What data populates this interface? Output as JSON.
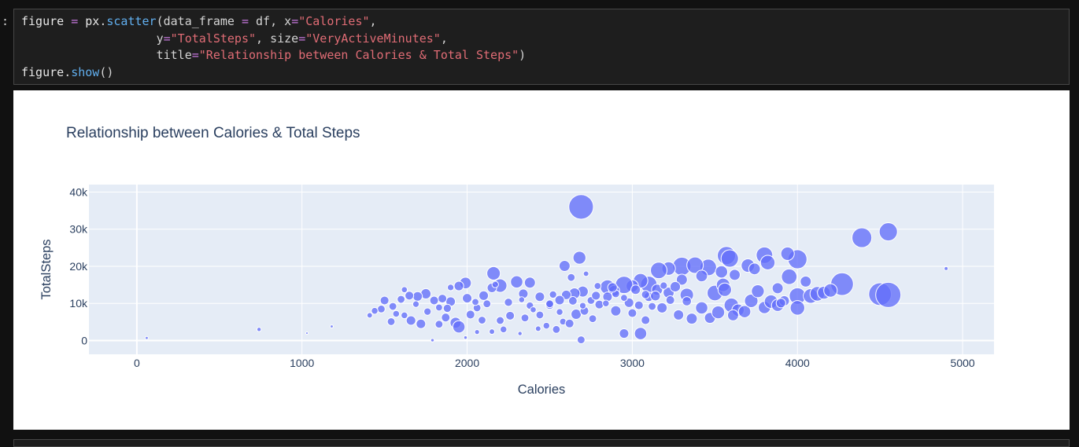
{
  "cell": {
    "prompt": ":",
    "code_lines": [
      [
        {
          "t": "id",
          "v": "figure "
        },
        {
          "t": "op",
          "v": "="
        },
        {
          "t": "id",
          "v": " px"
        },
        {
          "t": "p",
          "v": "."
        },
        {
          "t": "fn",
          "v": "scatter"
        },
        {
          "t": "p",
          "v": "(data_frame "
        },
        {
          "t": "op",
          "v": "="
        },
        {
          "t": "p",
          "v": " df, x"
        },
        {
          "t": "op",
          "v": "="
        },
        {
          "t": "str",
          "v": "\"Calories\""
        },
        {
          "t": "p",
          "v": ","
        }
      ],
      [
        {
          "t": "p",
          "v": "                   y"
        },
        {
          "t": "op",
          "v": "="
        },
        {
          "t": "str",
          "v": "\"TotalSteps\""
        },
        {
          "t": "p",
          "v": ", size"
        },
        {
          "t": "op",
          "v": "="
        },
        {
          "t": "str",
          "v": "\"VeryActiveMinutes\""
        },
        {
          "t": "p",
          "v": ","
        }
      ],
      [
        {
          "t": "p",
          "v": "                   title"
        },
        {
          "t": "op",
          "v": "="
        },
        {
          "t": "str",
          "v": "\"Relationship between Calories & Total Steps\""
        },
        {
          "t": "p",
          "v": ")"
        }
      ],
      [
        {
          "t": "id",
          "v": "figure"
        },
        {
          "t": "p",
          "v": "."
        },
        {
          "t": "fn",
          "v": "show"
        },
        {
          "t": "p",
          "v": "()"
        }
      ]
    ]
  },
  "chart_data": {
    "type": "scatter",
    "title": "Relationship between Calories & Total Steps",
    "xlabel": "Calories",
    "ylabel": "TotalSteps",
    "xlim": [
      -290,
      5190
    ],
    "ylim": [
      -3700,
      42000
    ],
    "x_ticks": [
      0,
      1000,
      2000,
      3000,
      4000,
      5000
    ],
    "x_tick_labels": [
      "0",
      "1000",
      "2000",
      "3000",
      "4000",
      "5000"
    ],
    "y_ticks": [
      0,
      10000,
      20000,
      30000,
      40000
    ],
    "y_tick_labels": [
      "0",
      "10k",
      "20k",
      "30k",
      "40k"
    ],
    "grid": true,
    "marker_color": "#636efa",
    "plot_background": "#e5ecf6",
    "size_field": "VeryActiveMinutes",
    "points": [
      [
        2690,
        36000,
        200
      ],
      [
        4390,
        27700,
        130
      ],
      [
        4550,
        29300,
        110
      ],
      [
        4900,
        19400,
        5
      ],
      [
        4270,
        15200,
        170
      ],
      [
        4500,
        12500,
        170
      ],
      [
        4550,
        12300,
        210
      ],
      [
        4000,
        21900,
        120
      ],
      [
        4000,
        12000,
        90
      ],
      [
        4000,
        8800,
        70
      ],
      [
        3950,
        17200,
        80
      ],
      [
        3800,
        23000,
        90
      ],
      [
        3820,
        21000,
        70
      ],
      [
        3940,
        23400,
        60
      ],
      [
        3700,
        20200,
        60
      ],
      [
        3570,
        22900,
        110
      ],
      [
        3590,
        22100,
        100
      ],
      [
        3460,
        19700,
        90
      ],
      [
        3500,
        12800,
        80
      ],
      [
        3550,
        15000,
        60
      ],
      [
        3600,
        9500,
        70
      ],
      [
        3640,
        8200,
        50
      ],
      [
        3300,
        20000,
        110
      ],
      [
        3380,
        20300,
        90
      ],
      [
        3220,
        19400,
        60
      ],
      [
        3160,
        18900,
        90
      ],
      [
        3100,
        15100,
        90
      ],
      [
        3050,
        16100,
        70
      ],
      [
        3000,
        14700,
        50
      ],
      [
        2950,
        15000,
        100
      ],
      [
        2850,
        14400,
        70
      ],
      [
        2890,
        13400,
        40
      ],
      [
        2700,
        13200,
        40
      ],
      [
        2650,
        12700,
        40
      ],
      [
        2600,
        12300,
        30
      ],
      [
        2560,
        10900,
        30
      ],
      [
        2500,
        9600,
        25
      ],
      [
        2440,
        11800,
        30
      ],
      [
        2340,
        12600,
        30
      ],
      [
        2300,
        15800,
        50
      ],
      [
        2380,
        15600,
        40
      ],
      [
        2200,
        14800,
        60
      ],
      [
        2160,
        18100,
        60
      ],
      [
        2150,
        14200,
        30
      ],
      [
        2100,
        12100,
        30
      ],
      [
        2060,
        8800,
        20
      ],
      [
        2000,
        11400,
        30
      ],
      [
        1990,
        15500,
        45
      ],
      [
        1950,
        14700,
        30
      ],
      [
        1900,
        10500,
        30
      ],
      [
        1850,
        11300,
        25
      ],
      [
        1800,
        10800,
        25
      ],
      [
        1750,
        12600,
        35
      ],
      [
        1700,
        11900,
        30
      ],
      [
        1650,
        12100,
        25
      ],
      [
        1600,
        11100,
        20
      ],
      [
        1550,
        9200,
        20
      ],
      [
        1500,
        10800,
        25
      ],
      [
        1480,
        8500,
        20
      ],
      [
        1440,
        8000,
        15
      ],
      [
        1410,
        6800,
        10
      ],
      [
        1540,
        5100,
        20
      ],
      [
        1620,
        6800,
        15
      ],
      [
        1660,
        5400,
        30
      ],
      [
        1720,
        4500,
        30
      ],
      [
        1830,
        4400,
        20
      ],
      [
        1870,
        6200,
        25
      ],
      [
        1930,
        4800,
        40
      ],
      [
        1950,
        3700,
        50
      ],
      [
        2020,
        7000,
        25
      ],
      [
        2090,
        5500,
        20
      ],
      [
        2150,
        2400,
        10
      ],
      [
        2200,
        5400,
        20
      ],
      [
        2260,
        6700,
        25
      ],
      [
        2350,
        6100,
        20
      ],
      [
        2440,
        6900,
        20
      ],
      [
        2480,
        4000,
        15
      ],
      [
        2540,
        3000,
        20
      ],
      [
        2580,
        5100,
        15
      ],
      [
        2620,
        4600,
        25
      ],
      [
        2660,
        7100,
        35
      ],
      [
        2760,
        5900,
        20
      ],
      [
        2800,
        9700,
        25
      ],
      [
        2850,
        11800,
        30
      ],
      [
        2900,
        8000,
        35
      ],
      [
        2980,
        10200,
        30
      ],
      [
        3040,
        9500,
        25
      ],
      [
        3100,
        11800,
        30
      ],
      [
        3150,
        13700,
        40
      ],
      [
        3180,
        8800,
        35
      ],
      [
        3220,
        12900,
        40
      ],
      [
        3280,
        6900,
        35
      ],
      [
        3330,
        12300,
        60
      ],
      [
        3360,
        5900,
        40
      ],
      [
        3420,
        8800,
        50
      ],
      [
        3470,
        6100,
        40
      ],
      [
        3520,
        7600,
        55
      ],
      [
        3560,
        13700,
        60
      ],
      [
        3610,
        6800,
        40
      ],
      [
        3680,
        7800,
        50
      ],
      [
        3720,
        10700,
        60
      ],
      [
        3760,
        13300,
        55
      ],
      [
        3800,
        8900,
        50
      ],
      [
        3840,
        10500,
        60
      ],
      [
        3880,
        9500,
        50
      ],
      [
        3920,
        10700,
        35
      ],
      [
        4080,
        12000,
        70
      ],
      [
        4120,
        12600,
        70
      ],
      [
        4160,
        12900,
        55
      ],
      [
        4200,
        13500,
        60
      ],
      [
        2950,
        1900,
        30
      ],
      [
        3050,
        1900,
        50
      ],
      [
        3080,
        5500,
        25
      ],
      [
        2690,
        200,
        20
      ],
      [
        2720,
        18000,
        10
      ],
      [
        2680,
        22300,
        55
      ],
      [
        2590,
        20100,
        40
      ],
      [
        2630,
        17000,
        20
      ],
      [
        2430,
        3200,
        10
      ],
      [
        2320,
        1900,
        6
      ],
      [
        2220,
        3000,
        15
      ],
      [
        2060,
        2300,
        8
      ],
      [
        1790,
        100,
        4
      ],
      [
        1990,
        800,
        4
      ],
      [
        2560,
        7700,
        15
      ],
      [
        2710,
        8000,
        25
      ],
      [
        2750,
        10800,
        20
      ],
      [
        2840,
        10000,
        15
      ],
      [
        2900,
        12600,
        20
      ],
      [
        3000,
        7400,
        25
      ],
      [
        3120,
        9200,
        20
      ],
      [
        3230,
        10900,
        25
      ],
      [
        3300,
        16400,
        40
      ],
      [
        3420,
        17400,
        45
      ],
      [
        3540,
        18500,
        50
      ],
      [
        3620,
        17700,
        40
      ],
      [
        3740,
        19300,
        45
      ],
      [
        3880,
        14100,
        40
      ],
      [
        1180,
        3800,
        3
      ],
      [
        740,
        3000,
        6
      ],
      [
        1030,
        2000,
        2
      ],
      [
        60,
        700,
        3
      ],
      [
        1570,
        7200,
        15
      ],
      [
        1760,
        7800,
        18
      ],
      [
        1880,
        8700,
        22
      ],
      [
        2120,
        9900,
        20
      ],
      [
        2250,
        10300,
        22
      ],
      [
        2380,
        9400,
        18
      ],
      [
        2500,
        9900,
        20
      ],
      [
        2640,
        10700,
        24
      ],
      [
        2780,
        12100,
        26
      ],
      [
        2880,
        14300,
        30
      ],
      [
        3020,
        13700,
        30
      ],
      [
        3140,
        12000,
        32
      ],
      [
        3260,
        14500,
        36
      ],
      [
        2400,
        8300,
        12
      ],
      [
        2700,
        9400,
        14
      ],
      [
        2950,
        11500,
        16
      ],
      [
        1690,
        9800,
        14
      ],
      [
        1830,
        8900,
        16
      ],
      [
        2520,
        12400,
        18
      ],
      [
        3080,
        12400,
        22
      ],
      [
        1620,
        13700,
        12
      ],
      [
        1900,
        14300,
        14
      ],
      [
        2170,
        15100,
        14
      ],
      [
        2790,
        14700,
        16
      ],
      [
        3330,
        10600,
        28
      ],
      [
        3900,
        10100,
        30
      ],
      [
        4050,
        15900,
        40
      ],
      [
        2330,
        11000,
        12
      ],
      [
        2050,
        10400,
        16
      ],
      [
        3190,
        14800,
        18
      ]
    ]
  }
}
